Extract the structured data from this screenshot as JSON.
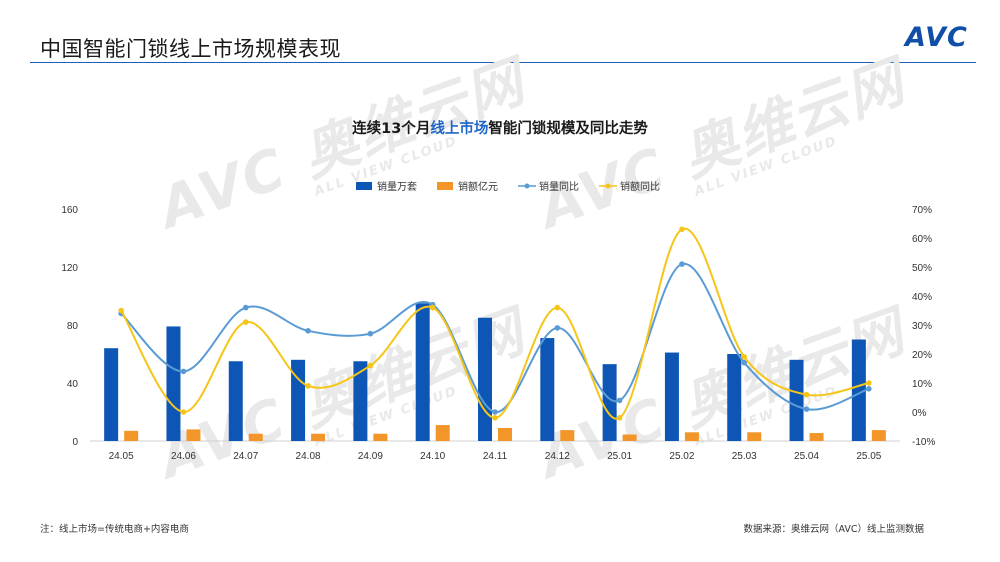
{
  "header": {
    "title": "中国智能门锁线上市场规模表现",
    "logo_text": "AVC"
  },
  "watermark": {
    "brand": "AVC 奥维云网",
    "sub": "ALL VIEW CLOUD"
  },
  "chart_title": {
    "prefix": "连续13个月",
    "highlight": "线上市场",
    "suffix": "智能门锁规模及同比走势"
  },
  "chart_data": {
    "type": "bar",
    "categories": [
      "24.05",
      "24.06",
      "24.07",
      "24.08",
      "24.09",
      "24.10",
      "24.11",
      "24.12",
      "25.01",
      "25.02",
      "25.03",
      "25.04",
      "25.05"
    ],
    "series": [
      {
        "name": "销量万套",
        "kind": "bar",
        "axis": "left",
        "color": "#0d56b5",
        "values": [
          64,
          79,
          55,
          56,
          55,
          95,
          85,
          71,
          53,
          61,
          60,
          56,
          70
        ]
      },
      {
        "name": "销额亿元",
        "kind": "bar",
        "axis": "left",
        "color": "#f2962a",
        "values": [
          7,
          8,
          5,
          5,
          5,
          11,
          9,
          7.5,
          4.5,
          6,
          6,
          5.5,
          7.5
        ]
      },
      {
        "name": "销量同比",
        "kind": "line",
        "axis": "right",
        "color": "#5b9bd5",
        "values": [
          34,
          14,
          36,
          28,
          27,
          37,
          0,
          29,
          4,
          51,
          17,
          1,
          8
        ]
      },
      {
        "name": "销额同比",
        "kind": "line",
        "axis": "right",
        "color": "#f5c518",
        "values": [
          35,
          0,
          31,
          9,
          16,
          36,
          -2,
          36,
          -2,
          63,
          19,
          6,
          10
        ]
      }
    ],
    "y_left": {
      "min": 0,
      "max": 160,
      "ticks": [
        "0",
        "40",
        "80",
        "120",
        "160"
      ]
    },
    "y_right": {
      "min": -10,
      "max": 70,
      "ticks": [
        "-10%",
        "0%",
        "10%",
        "20%",
        "30%",
        "40%",
        "50%",
        "60%",
        "70%"
      ]
    },
    "legend_position": "top-center",
    "grid": false
  },
  "footer": {
    "note": "注：线上市场=传统电商+内容电商",
    "source": "数据来源：奥维云网（AVC）线上监测数据"
  }
}
